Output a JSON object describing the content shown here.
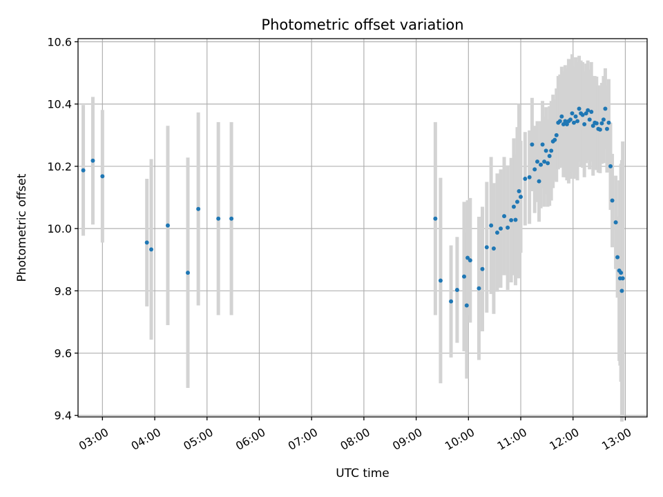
{
  "chart_data": {
    "type": "scatter",
    "title": "Photometric offset variation",
    "xlabel": "UTC time",
    "ylabel": "Photometric offset",
    "xlim": [
      "02:32",
      "13:25"
    ],
    "ylim": [
      9.395,
      10.61
    ],
    "x_ticks": [
      "03:00",
      "04:00",
      "05:00",
      "06:00",
      "07:00",
      "08:00",
      "09:00",
      "10:00",
      "11:00",
      "12:00",
      "13:00"
    ],
    "y_ticks": [
      "9.4",
      "9.6",
      "9.8",
      "10.0",
      "10.2",
      "10.4",
      "10.6"
    ],
    "grid": true,
    "marker_color": "#1f77b4",
    "errorbar_color": "#d3d3d3",
    "series": [
      {
        "x": [
          "02:38",
          "02:49",
          "03:00",
          "03:51",
          "03:56",
          "04:15",
          "04:38",
          "04:50",
          "05:13",
          "05:28",
          "09:22",
          "09:28",
          "09:40",
          "09:47",
          "09:55",
          "09:58",
          "09:59",
          "10:02",
          "10:12",
          "10:16",
          "10:21",
          "10:26",
          "10:29",
          "10:33",
          "10:37",
          "10:41",
          "10:45",
          "10:49",
          "10:52",
          "10:54",
          "10:56",
          "10:58",
          "11:00",
          "11:05",
          "11:10",
          "11:13",
          "11:16",
          "11:19",
          "11:21",
          "11:23",
          "11:25",
          "11:27",
          "11:29",
          "11:31",
          "11:33",
          "11:35",
          "11:37",
          "11:39",
          "11:41",
          "11:43",
          "11:45",
          "11:47",
          "11:49",
          "11:51",
          "11:53",
          "11:55",
          "11:57",
          "11:59",
          "12:01",
          "12:03",
          "12:05",
          "12:07",
          "12:09",
          "12:11",
          "12:13",
          "12:15",
          "12:17",
          "12:19",
          "12:21",
          "12:23",
          "12:25",
          "12:27",
          "12:29",
          "12:31",
          "12:33",
          "12:35",
          "12:37",
          "12:39",
          "12:41",
          "12:43",
          "12:45",
          "12:49",
          "12:51",
          "12:53",
          "12:54",
          "12:55",
          "12:56",
          "12:57"
        ],
        "y": [
          10.187,
          10.218,
          10.168,
          9.955,
          9.933,
          10.01,
          9.858,
          10.063,
          10.032,
          10.032,
          10.032,
          9.833,
          9.766,
          9.803,
          9.846,
          9.753,
          9.906,
          9.898,
          9.808,
          9.87,
          9.94,
          10.01,
          9.936,
          9.987,
          10.0,
          10.04,
          10.003,
          10.027,
          10.07,
          10.028,
          10.086,
          10.12,
          10.102,
          10.16,
          10.165,
          10.27,
          10.19,
          10.215,
          10.152,
          10.205,
          10.27,
          10.215,
          10.25,
          10.21,
          10.233,
          10.25,
          10.28,
          10.285,
          10.3,
          10.34,
          10.345,
          10.36,
          10.335,
          10.345,
          10.335,
          10.345,
          10.35,
          10.37,
          10.34,
          10.36,
          10.345,
          10.385,
          10.37,
          10.365,
          10.335,
          10.37,
          10.38,
          10.35,
          10.375,
          10.33,
          10.34,
          10.338,
          10.32,
          10.318,
          10.338,
          10.35,
          10.385,
          10.32,
          10.34,
          10.2,
          10.09,
          10.02,
          9.908,
          9.865,
          9.84,
          9.858,
          9.8,
          9.84
        ],
        "err": [
          0.21,
          0.205,
          0.213,
          0.205,
          0.29,
          0.32,
          0.37,
          0.31,
          0.31,
          0.31,
          0.31,
          0.33,
          0.18,
          0.17,
          0.24,
          0.235,
          0.185,
          0.2,
          0.23,
          0.2,
          0.21,
          0.22,
          0.21,
          0.19,
          0.19,
          0.19,
          0.2,
          0.2,
          0.22,
          0.21,
          0.24,
          0.28,
          0.18,
          0.15,
          0.15,
          0.15,
          0.14,
          0.13,
          0.13,
          0.14,
          0.14,
          0.145,
          0.14,
          0.14,
          0.16,
          0.16,
          0.15,
          0.13,
          0.15,
          0.15,
          0.15,
          0.16,
          0.17,
          0.18,
          0.18,
          0.2,
          0.19,
          0.19,
          0.18,
          0.19,
          0.19,
          0.17,
          0.17,
          0.17,
          0.17,
          0.16,
          0.16,
          0.16,
          0.16,
          0.16,
          0.15,
          0.15,
          0.14,
          0.14,
          0.13,
          0.14,
          0.13,
          0.14,
          0.14,
          0.14,
          0.15,
          0.15,
          0.13,
          0.29,
          0.28,
          0.35,
          0.42,
          0.44
        ]
      }
    ]
  }
}
